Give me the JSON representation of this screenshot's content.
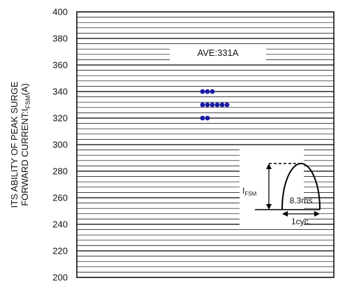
{
  "chart_data": {
    "type": "scatter",
    "ylim": [
      200,
      400
    ],
    "y_ticks": [
      200,
      220,
      240,
      260,
      280,
      300,
      320,
      340,
      360,
      380,
      400
    ],
    "ylabel": {
      "line1": "ITS ABILITY OF PEAK SURGE",
      "line2_main": "FORWARD CURRENT:I",
      "line2_sub": "FSM",
      "line2_unit": "(A)"
    },
    "grid": true,
    "annotation": "AVE:331A",
    "points": [
      {
        "y": 340,
        "count": 3
      },
      {
        "y": 330,
        "count": 6
      },
      {
        "y": 320,
        "count": 2
      }
    ],
    "marker_color": "#1a1aa6",
    "inset": {
      "i_label_main": "I",
      "i_label_sub": "FSM",
      "duration_label": "8.3ms",
      "cycle_label": "1cyc."
    }
  }
}
